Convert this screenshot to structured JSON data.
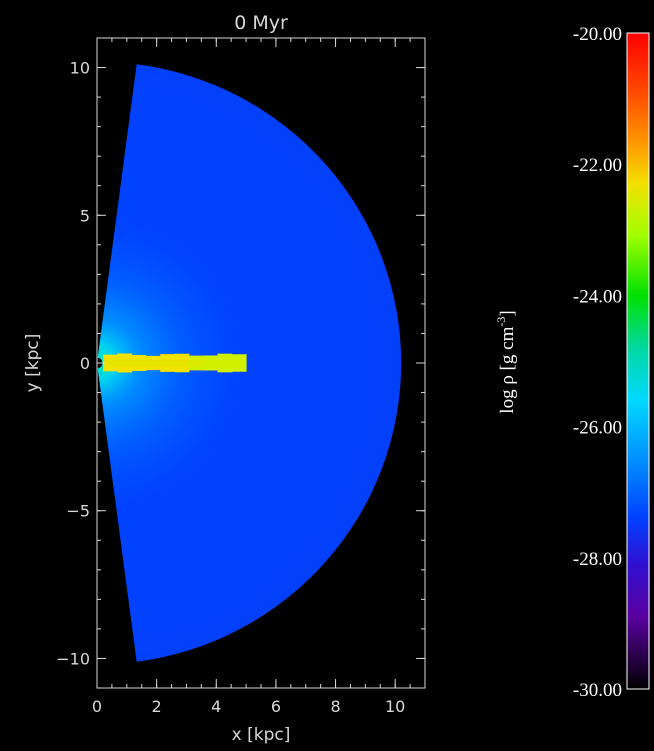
{
  "chart_data": [
    {
      "type": "heatmap",
      "title": "0 Myr",
      "xlabel": "x [kpc]",
      "ylabel": "y [kpc]",
      "xlim": [
        0,
        11
      ],
      "ylim": [
        -11,
        11
      ],
      "x_ticks": [
        0,
        2,
        4,
        6,
        8,
        10
      ],
      "y_ticks": [
        -10,
        -5,
        0,
        5,
        10
      ],
      "x_tick_labels": [
        "0",
        "2",
        "4",
        "6",
        "8",
        "10"
      ],
      "y_tick_labels": [
        "−10",
        "−5",
        "0",
        "5",
        "10"
      ],
      "grid": false,
      "domain": {
        "shape": "half-disk sector",
        "outer_radius_kpc": 10.2,
        "inner_radius_kpc": 0.18,
        "theta_range_deg": [
          -82.5,
          82.5
        ],
        "background_log_rho": -27.4
      },
      "central_concentration": {
        "peak_log_rho_near_center": -24.0,
        "halo_scale_kpc": 2.2
      },
      "jet": {
        "x_start_kpc": 0.2,
        "x_end_kpc": 5.0,
        "half_width_kpc": 0.28,
        "log_rho": -22.5
      }
    },
    {
      "type": "colorbar",
      "label": "log ρ [g cm⁻³]",
      "label_main": "log ρ [g cm",
      "label_sup": "-3",
      "label_tail": "]",
      "range": [
        -30,
        -20
      ],
      "tick_values": [
        -20,
        -22,
        -24,
        -26,
        -28,
        -30
      ],
      "tick_labels": [
        "-20.00",
        "-22.00",
        "-24.00",
        "-26.00",
        "-28.00",
        "-30.00"
      ],
      "colormap": "rainbow (black-purple-blue-cyan-green-yellow-orange-red)"
    }
  ]
}
